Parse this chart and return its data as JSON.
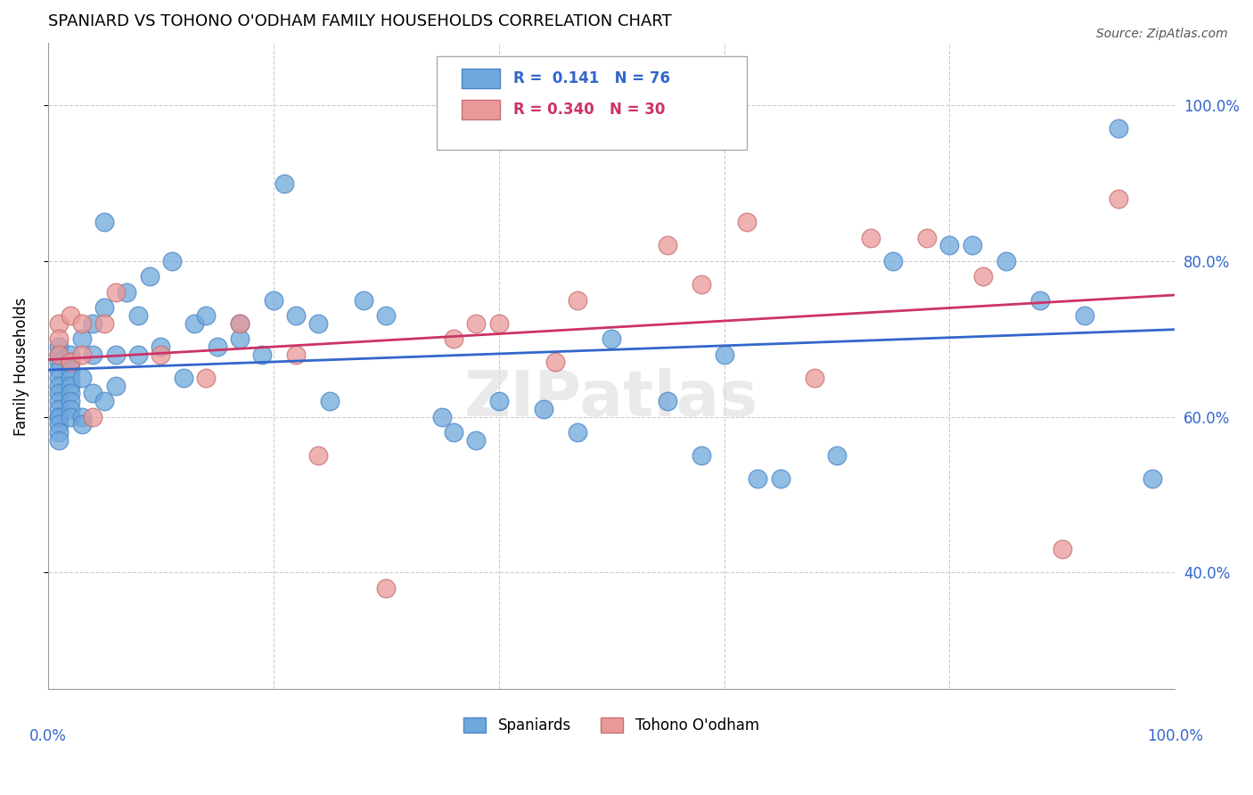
{
  "title": "SPANIARD VS TOHONO O'ODHAM FAMILY HOUSEHOLDS CORRELATION CHART",
  "source": "Source: ZipAtlas.com",
  "ylabel": "Family Households",
  "ytick_labels": [
    "40.0%",
    "60.0%",
    "80.0%",
    "100.0%"
  ],
  "ytick_values": [
    0.4,
    0.6,
    0.8,
    1.0
  ],
  "xlim": [
    0.0,
    1.0
  ],
  "ylim": [
    0.25,
    1.08
  ],
  "legend1_r": "0.141",
  "legend1_n": "76",
  "legend2_r": "0.340",
  "legend2_n": "30",
  "blue_color": "#6fa8dc",
  "pink_color": "#ea9999",
  "blue_edge_color": "#4a86c8",
  "pink_edge_color": "#c97070",
  "blue_line_color": "#3366cc",
  "pink_line_color": "#cc3366",
  "legend_blue": "Spaniards",
  "legend_pink": "Tohono O'odham",
  "watermark": "ZIPatlas",
  "spaniards_x": [
    0.01,
    0.01,
    0.01,
    0.01,
    0.01,
    0.01,
    0.01,
    0.01,
    0.01,
    0.01,
    0.01,
    0.01,
    0.01,
    0.01,
    0.02,
    0.02,
    0.02,
    0.02,
    0.02,
    0.02,
    0.02,
    0.02,
    0.02,
    0.03,
    0.03,
    0.03,
    0.03,
    0.04,
    0.04,
    0.04,
    0.05,
    0.05,
    0.05,
    0.06,
    0.06,
    0.07,
    0.08,
    0.08,
    0.09,
    0.1,
    0.11,
    0.12,
    0.13,
    0.14,
    0.15,
    0.17,
    0.17,
    0.19,
    0.2,
    0.21,
    0.22,
    0.24,
    0.25,
    0.28,
    0.3,
    0.35,
    0.36,
    0.38,
    0.4,
    0.44,
    0.47,
    0.5,
    0.55,
    0.58,
    0.6,
    0.63,
    0.65,
    0.7,
    0.75,
    0.8,
    0.82,
    0.85,
    0.88,
    0.92,
    0.95,
    0.98
  ],
  "spaniards_y": [
    0.69,
    0.68,
    0.67,
    0.66,
    0.65,
    0.64,
    0.63,
    0.62,
    0.61,
    0.6,
    0.6,
    0.59,
    0.58,
    0.57,
    0.68,
    0.67,
    0.66,
    0.65,
    0.64,
    0.63,
    0.62,
    0.61,
    0.6,
    0.7,
    0.65,
    0.6,
    0.59,
    0.72,
    0.68,
    0.63,
    0.85,
    0.74,
    0.62,
    0.68,
    0.64,
    0.76,
    0.73,
    0.68,
    0.78,
    0.69,
    0.8,
    0.65,
    0.72,
    0.73,
    0.69,
    0.72,
    0.7,
    0.68,
    0.75,
    0.9,
    0.73,
    0.72,
    0.62,
    0.75,
    0.73,
    0.6,
    0.58,
    0.57,
    0.62,
    0.61,
    0.58,
    0.7,
    0.62,
    0.55,
    0.68,
    0.52,
    0.52,
    0.55,
    0.8,
    0.82,
    0.82,
    0.8,
    0.75,
    0.73,
    0.97,
    0.52
  ],
  "tohono_x": [
    0.01,
    0.01,
    0.01,
    0.02,
    0.02,
    0.03,
    0.03,
    0.04,
    0.05,
    0.06,
    0.1,
    0.14,
    0.17,
    0.22,
    0.24,
    0.3,
    0.36,
    0.38,
    0.4,
    0.45,
    0.47,
    0.55,
    0.58,
    0.62,
    0.68,
    0.73,
    0.78,
    0.83,
    0.9,
    0.95
  ],
  "tohono_y": [
    0.72,
    0.7,
    0.68,
    0.73,
    0.67,
    0.72,
    0.68,
    0.6,
    0.72,
    0.76,
    0.68,
    0.65,
    0.72,
    0.68,
    0.55,
    0.38,
    0.7,
    0.72,
    0.72,
    0.67,
    0.75,
    0.82,
    0.77,
    0.85,
    0.65,
    0.83,
    0.83,
    0.78,
    0.43,
    0.88
  ]
}
